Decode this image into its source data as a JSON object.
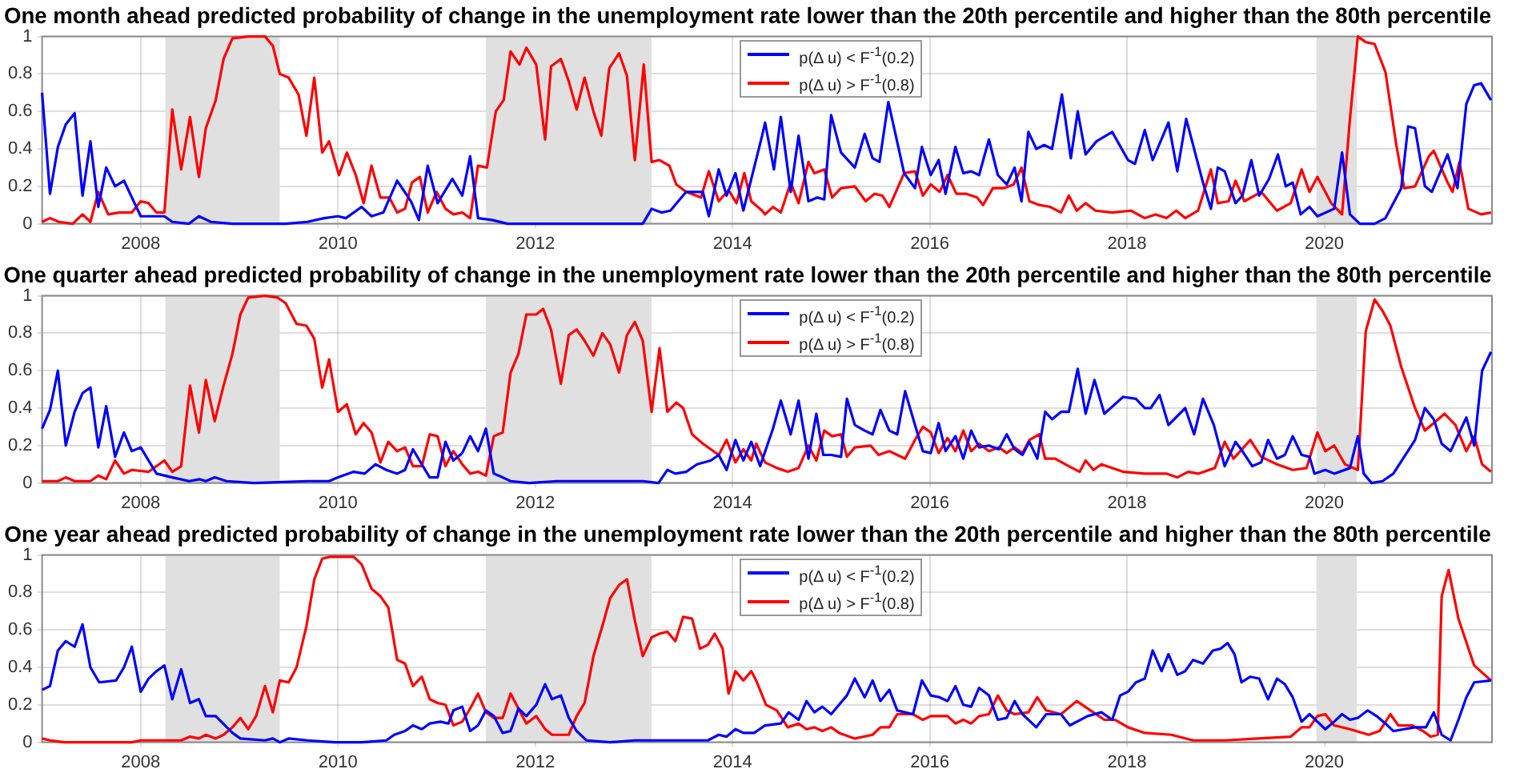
{
  "chart_data": [
    {
      "type": "line",
      "title": "One month ahead predicted probability of change in the unemployment rate lower than the 20th percentile and higher than the 80th percentile",
      "xlim": [
        2007,
        2021.7
      ],
      "xticks": [
        2008,
        2010,
        2012,
        2014,
        2016,
        2018,
        2020
      ],
      "ylim": [
        0,
        1
      ],
      "yticks": [
        0,
        0.2,
        0.4,
        0.6,
        0.8,
        1
      ],
      "grid": true,
      "legend": "top",
      "bands": [
        {
          "axis": "x",
          "from": 2008.25,
          "to": 2009.41,
          "color": "#e0e0e0"
        },
        {
          "axis": "x",
          "from": 2011.5,
          "to": 2013.18,
          "color": "#e0e0e0"
        },
        {
          "axis": "x",
          "from": 2019.92,
          "to": 2020.33,
          "color": "#e0e0e0"
        }
      ],
      "series": [
        {
          "name": "p(Δ u) < F$^{-1}$(0.2)",
          "color": "#0000ff",
          "x": [
            2007.0,
            2007.08,
            2007.16,
            2007.24,
            2007.33,
            2007.41,
            2007.49,
            2007.57,
            2007.65,
            2007.74,
            2007.83,
            2008.0,
            2008.24,
            2008.32,
            2008.49,
            2008.59,
            2008.71,
            2008.93,
            2009.47,
            2009.69,
            2009.86,
            2010.0,
            2010.08,
            2010.24,
            2010.34,
            2010.46,
            2010.6,
            2010.74,
            2010.82,
            2010.91,
            2011.01,
            2011.16,
            2011.26,
            2011.34,
            2011.42,
            2011.56,
            2011.72,
            2011.94,
            2013.09,
            2013.18,
            2013.28,
            2013.37,
            2013.53,
            2013.7,
            2013.76,
            2013.86,
            2013.94,
            2014.03,
            2014.11,
            2014.3,
            2014.33,
            2014.42,
            2014.49,
            2014.59,
            2014.67,
            2014.77,
            2014.86,
            2014.93,
            2015.0,
            2015.1,
            2015.24,
            2015.34,
            2015.42,
            2015.49,
            2015.58,
            2015.74,
            2015.85,
            2015.92,
            2016.01,
            2016.09,
            2016.16,
            2016.26,
            2016.34,
            2016.42,
            2016.5,
            2016.6,
            2016.69,
            2016.78,
            2016.86,
            2016.93,
            2017.0,
            2017.08,
            2017.16,
            2017.24,
            2017.34,
            2017.43,
            2017.5,
            2017.58,
            2017.69,
            2017.85,
            2018.01,
            2018.08,
            2018.18,
            2018.26,
            2018.42,
            2018.51,
            2018.6,
            2018.77,
            2018.85,
            2018.92,
            2018.99,
            2019.1,
            2019.17,
            2019.26,
            2019.34,
            2019.44,
            2019.53,
            2019.61,
            2019.68,
            2019.76,
            2019.85,
            2019.93,
            2020.1,
            2020.18,
            2020.26,
            2020.36,
            2020.51,
            2020.62,
            2020.78,
            2020.85,
            2020.92,
            2021.02,
            2021.09,
            2021.25,
            2021.35,
            2021.44,
            2021.52,
            2021.59,
            2021.69
          ],
          "values": [
            0.7,
            0.16,
            0.41,
            0.53,
            0.59,
            0.15,
            0.44,
            0.09,
            0.3,
            0.2,
            0.23,
            0.04,
            0.04,
            0.01,
            0.0,
            0.04,
            0.01,
            0,
            0,
            0.01,
            0.03,
            0.04,
            0.03,
            0.09,
            0.04,
            0.06,
            0.23,
            0.12,
            0.02,
            0.31,
            0.11,
            0.24,
            0.15,
            0.36,
            0.03,
            0.02,
            0,
            0,
            0,
            0.08,
            0.06,
            0.07,
            0.17,
            0.17,
            0.04,
            0.29,
            0.15,
            0.27,
            0.07,
            0.47,
            0.54,
            0.29,
            0.57,
            0.17,
            0.47,
            0.12,
            0.14,
            0.13,
            0.58,
            0.38,
            0.3,
            0.48,
            0.35,
            0.33,
            0.65,
            0.27,
            0.19,
            0.41,
            0.26,
            0.34,
            0.16,
            0.41,
            0.27,
            0.28,
            0.26,
            0.45,
            0.26,
            0.21,
            0.3,
            0.12,
            0.49,
            0.4,
            0.42,
            0.4,
            0.69,
            0.35,
            0.6,
            0.37,
            0.44,
            0.49,
            0.34,
            0.32,
            0.5,
            0.34,
            0.54,
            0.28,
            0.56,
            0.22,
            0.08,
            0.3,
            0.28,
            0.11,
            0.15,
            0.34,
            0.15,
            0.24,
            0.37,
            0.2,
            0.22,
            0.05,
            0.09,
            0.04,
            0.08,
            0.38,
            0.05,
            0,
            0,
            0.03,
            0.19,
            0.52,
            0.51,
            0.2,
            0.17,
            0.37,
            0.19,
            0.64,
            0.74,
            0.75,
            0.66
          ]
        },
        {
          "name": "p(Δ u) > F$^{-1}$(0.8)",
          "color": "#ff0000",
          "x": [
            2007.0,
            2007.08,
            2007.17,
            2007.31,
            2007.41,
            2007.49,
            2007.57,
            2007.67,
            2007.78,
            2007.91,
            2008.0,
            2008.08,
            2008.16,
            2008.24,
            2008.32,
            2008.41,
            2008.5,
            2008.59,
            2008.66,
            2008.76,
            2008.84,
            2008.93,
            2009.09,
            2009.26,
            2009.34,
            2009.41,
            2009.5,
            2009.6,
            2009.68,
            2009.76,
            2009.84,
            2009.91,
            2010.01,
            2010.09,
            2010.18,
            2010.26,
            2010.34,
            2010.43,
            2010.52,
            2010.6,
            2010.68,
            2010.75,
            2010.83,
            2010.91,
            2011.0,
            2011.09,
            2011.17,
            2011.26,
            2011.34,
            2011.42,
            2011.51,
            2011.6,
            2011.68,
            2011.75,
            2011.84,
            2011.91,
            2012.01,
            2012.1,
            2012.16,
            2012.26,
            2012.34,
            2012.42,
            2012.5,
            2012.59,
            2012.67,
            2012.75,
            2012.85,
            2012.93,
            2013.01,
            2013.1,
            2013.18,
            2013.26,
            2013.36,
            2013.43,
            2013.53,
            2013.68,
            2013.76,
            2013.86,
            2013.96,
            2014.04,
            2014.12,
            2014.19,
            2014.3,
            2014.33,
            2014.41,
            2014.49,
            2014.59,
            2014.67,
            2014.77,
            2014.83,
            2014.93,
            2015.01,
            2015.1,
            2015.24,
            2015.35,
            2015.44,
            2015.52,
            2015.59,
            2015.74,
            2015.85,
            2015.93,
            2016.01,
            2016.1,
            2016.18,
            2016.27,
            2016.37,
            2016.48,
            2016.54,
            2016.64,
            2016.75,
            2016.85,
            2016.93,
            2017.01,
            2017.11,
            2017.22,
            2017.33,
            2017.41,
            2017.49,
            2017.58,
            2017.68,
            2017.85,
            2018.04,
            2018.18,
            2018.29,
            2018.4,
            2018.5,
            2018.59,
            2018.72,
            2018.85,
            2018.92,
            2019.03,
            2019.1,
            2019.19,
            2019.36,
            2019.52,
            2019.66,
            2019.77,
            2019.85,
            2019.93,
            2020.07,
            2020.18,
            2020.26,
            2020.34,
            2020.42,
            2020.51,
            2020.62,
            2020.73,
            2020.81,
            2020.92,
            2021.06,
            2021.11,
            2021.25,
            2021.3,
            2021.37,
            2021.46,
            2021.59,
            2021.69
          ],
          "values": [
            0.01,
            0.03,
            0.01,
            0.0,
            0.05,
            0.01,
            0.17,
            0.05,
            0.06,
            0.06,
            0.12,
            0.11,
            0.06,
            0.06,
            0.61,
            0.29,
            0.57,
            0.25,
            0.51,
            0.66,
            0.88,
            0.99,
            1.0,
            1.0,
            0.95,
            0.8,
            0.78,
            0.69,
            0.47,
            0.78,
            0.38,
            0.44,
            0.26,
            0.38,
            0.26,
            0.11,
            0.31,
            0.14,
            0.14,
            0.06,
            0.08,
            0.22,
            0.25,
            0.06,
            0.17,
            0.08,
            0.05,
            0.06,
            0.03,
            0.31,
            0.3,
            0.6,
            0.66,
            0.92,
            0.85,
            0.94,
            0.85,
            0.45,
            0.84,
            0.88,
            0.76,
            0.61,
            0.78,
            0.6,
            0.47,
            0.83,
            0.91,
            0.79,
            0.34,
            0.85,
            0.33,
            0.34,
            0.31,
            0.21,
            0.17,
            0.14,
            0.28,
            0.12,
            0.18,
            0.11,
            0.27,
            0.12,
            0.07,
            0.05,
            0.09,
            0.06,
            0.22,
            0.11,
            0.33,
            0.27,
            0.29,
            0.14,
            0.19,
            0.2,
            0.12,
            0.16,
            0.15,
            0.09,
            0.27,
            0.28,
            0.15,
            0.21,
            0.17,
            0.26,
            0.16,
            0.16,
            0.14,
            0.1,
            0.19,
            0.19,
            0.21,
            0.3,
            0.12,
            0.1,
            0.09,
            0.06,
            0.15,
            0.07,
            0.11,
            0.07,
            0.06,
            0.07,
            0.03,
            0.05,
            0.03,
            0.07,
            0.03,
            0.07,
            0.29,
            0.11,
            0.12,
            0.23,
            0.12,
            0.17,
            0.07,
            0.11,
            0.29,
            0.17,
            0.25,
            0.11,
            0.05,
            0.56,
            1.0,
            0.97,
            0.96,
            0.81,
            0.42,
            0.19,
            0.2,
            0.36,
            0.39,
            0.22,
            0.17,
            0.33,
            0.08,
            0.05,
            0.06
          ]
        }
      ]
    },
    {
      "type": "line",
      "title": "One quarter ahead predicted probability of change in the unemployment rate lower than the 20th percentile and higher than the 80th percentile",
      "xlim": [
        2007,
        2021.7
      ],
      "xticks": [
        2008,
        2010,
        2012,
        2014,
        2016,
        2018,
        2020
      ],
      "ylim": [
        0,
        1
      ],
      "yticks": [
        0,
        0.2,
        0.4,
        0.6,
        0.8,
        1
      ],
      "grid": true,
      "legend": "top",
      "bands": [
        {
          "axis": "x",
          "from": 2008.25,
          "to": 2009.41,
          "color": "#e0e0e0"
        },
        {
          "axis": "x",
          "from": 2011.5,
          "to": 2013.18,
          "color": "#e0e0e0"
        },
        {
          "axis": "x",
          "from": 2019.92,
          "to": 2020.33,
          "color": "#e0e0e0"
        }
      ],
      "series": [
        {
          "name": "p(Δ u) < F$^{-1}$(0.2)",
          "color": "#0000ff",
          "x": [
            2007.0,
            2007.08,
            2007.16,
            2007.24,
            2007.33,
            2007.41,
            2007.49,
            2007.57,
            2007.65,
            2007.74,
            2007.83,
            2007.91,
            2008.0,
            2008.16,
            2008.32,
            2008.49,
            2008.6,
            2008.66,
            2008.75,
            2008.87,
            2009.15,
            2009.69,
            2009.91,
            2010.0,
            2010.16,
            2010.27,
            2010.38,
            2010.49,
            2010.6,
            2010.68,
            2010.76,
            2010.85,
            2010.93,
            2011.01,
            2011.09,
            2011.17,
            2011.26,
            2011.34,
            2011.42,
            2011.5,
            2011.58,
            2011.67,
            2011.75,
            2011.94,
            2012.22,
            2013.09,
            2013.25,
            2013.34,
            2013.42,
            2013.53,
            2013.64,
            2013.78,
            2013.86,
            2013.94,
            2014.03,
            2014.11,
            2014.19,
            2014.28,
            2014.41,
            2014.49,
            2014.59,
            2014.67,
            2014.77,
            2014.85,
            2014.92,
            2015.0,
            2015.1,
            2015.16,
            2015.24,
            2015.34,
            2015.42,
            2015.5,
            2015.59,
            2015.67,
            2015.75,
            2015.85,
            2015.93,
            2016.01,
            2016.09,
            2016.16,
            2016.26,
            2016.34,
            2016.42,
            2016.5,
            2016.6,
            2016.7,
            2016.78,
            2016.86,
            2016.94,
            2017.01,
            2017.09,
            2017.17,
            2017.24,
            2017.33,
            2017.41,
            2017.5,
            2017.58,
            2017.67,
            2017.77,
            2017.96,
            2018.09,
            2018.18,
            2018.24,
            2018.33,
            2018.42,
            2018.59,
            2018.68,
            2018.77,
            2018.88,
            2018.99,
            2019.1,
            2019.17,
            2019.27,
            2019.36,
            2019.43,
            2019.52,
            2019.6,
            2019.68,
            2019.77,
            2019.85,
            2019.9,
            2020.01,
            2020.1,
            2020.26,
            2020.34,
            2020.4,
            2020.48,
            2020.59,
            2020.7,
            2020.92,
            2021.02,
            2021.11,
            2021.19,
            2021.28,
            2021.44,
            2021.52,
            2021.6,
            2021.69
          ],
          "values": [
            0.29,
            0.39,
            0.6,
            0.2,
            0.38,
            0.48,
            0.51,
            0.19,
            0.41,
            0.14,
            0.27,
            0.17,
            0.19,
            0.05,
            0.03,
            0.01,
            0.02,
            0.01,
            0.03,
            0.01,
            0,
            0.01,
            0.01,
            0.03,
            0.06,
            0.05,
            0.1,
            0.07,
            0.05,
            0.07,
            0.18,
            0.1,
            0.03,
            0.03,
            0.22,
            0.12,
            0.16,
            0.25,
            0.17,
            0.29,
            0.05,
            0.03,
            0.01,
            0,
            0.01,
            0.01,
            0,
            0.07,
            0.05,
            0.06,
            0.1,
            0.12,
            0.15,
            0.07,
            0.23,
            0.12,
            0.22,
            0.09,
            0.29,
            0.44,
            0.26,
            0.44,
            0.13,
            0.37,
            0.15,
            0.15,
            0.14,
            0.45,
            0.31,
            0.28,
            0.26,
            0.39,
            0.28,
            0.26,
            0.49,
            0.31,
            0.17,
            0.16,
            0.32,
            0.17,
            0.25,
            0.13,
            0.28,
            0.19,
            0.2,
            0.18,
            0.26,
            0.18,
            0.15,
            0.22,
            0.13,
            0.38,
            0.34,
            0.38,
            0.38,
            0.61,
            0.37,
            0.55,
            0.37,
            0.46,
            0.45,
            0.4,
            0.4,
            0.47,
            0.31,
            0.4,
            0.26,
            0.45,
            0.31,
            0.09,
            0.22,
            0.17,
            0.09,
            0.11,
            0.23,
            0.13,
            0.15,
            0.25,
            0.15,
            0.14,
            0.05,
            0.07,
            0.05,
            0.08,
            0.25,
            0.05,
            0,
            0.01,
            0.05,
            0.23,
            0.4,
            0.34,
            0.21,
            0.17,
            0.35,
            0.2,
            0.6,
            0.7
          ]
        },
        {
          "name": "p(Δ u) > F$^{-1}$(0.8)",
          "color": "#ff0000",
          "x": [
            2007.0,
            2007.16,
            2007.24,
            2007.33,
            2007.49,
            2007.57,
            2007.65,
            2007.74,
            2007.83,
            2007.91,
            2008.08,
            2008.24,
            2008.32,
            2008.41,
            2008.5,
            2008.59,
            2008.66,
            2008.75,
            2008.84,
            2008.93,
            2009.01,
            2009.09,
            2009.26,
            2009.39,
            2009.47,
            2009.58,
            2009.68,
            2009.76,
            2009.84,
            2009.91,
            2010.0,
            2010.09,
            2010.18,
            2010.26,
            2010.34,
            2010.43,
            2010.51,
            2010.6,
            2010.68,
            2010.76,
            2010.85,
            2010.93,
            2011.01,
            2011.09,
            2011.17,
            2011.26,
            2011.34,
            2011.42,
            2011.5,
            2011.58,
            2011.67,
            2011.75,
            2011.83,
            2011.91,
            2012.01,
            2012.08,
            2012.16,
            2012.26,
            2012.34,
            2012.42,
            2012.5,
            2012.59,
            2012.68,
            2012.76,
            2012.85,
            2012.93,
            2013.01,
            2013.09,
            2013.18,
            2013.26,
            2013.34,
            2013.43,
            2013.5,
            2013.59,
            2013.7,
            2013.86,
            2013.94,
            2014.03,
            2014.11,
            2014.19,
            2014.24,
            2014.33,
            2014.45,
            2014.56,
            2014.67,
            2014.77,
            2014.85,
            2014.93,
            2015.01,
            2015.1,
            2015.16,
            2015.24,
            2015.4,
            2015.48,
            2015.59,
            2015.75,
            2015.85,
            2015.93,
            2016.01,
            2016.09,
            2016.18,
            2016.26,
            2016.34,
            2016.42,
            2016.5,
            2016.6,
            2016.7,
            2016.78,
            2016.86,
            2016.94,
            2017.01,
            2017.11,
            2017.17,
            2017.27,
            2017.41,
            2017.52,
            2017.58,
            2017.66,
            2017.74,
            2017.96,
            2018.18,
            2018.4,
            2018.51,
            2018.62,
            2018.72,
            2018.89,
            2018.99,
            2019.08,
            2019.25,
            2019.36,
            2019.52,
            2019.68,
            2019.82,
            2019.93,
            2020.01,
            2020.1,
            2020.21,
            2020.34,
            2020.42,
            2020.51,
            2020.59,
            2020.67,
            2020.78,
            2020.92,
            2021.02,
            2021.11,
            2021.22,
            2021.33,
            2021.44,
            2021.52,
            2021.6,
            2021.69
          ],
          "values": [
            0.01,
            0.01,
            0.03,
            0.01,
            0.01,
            0.04,
            0.02,
            0.12,
            0.05,
            0.07,
            0.06,
            0.12,
            0.06,
            0.09,
            0.52,
            0.27,
            0.55,
            0.33,
            0.52,
            0.69,
            0.9,
            0.99,
            1.0,
            0.99,
            0.96,
            0.85,
            0.84,
            0.77,
            0.51,
            0.66,
            0.38,
            0.42,
            0.26,
            0.32,
            0.27,
            0.11,
            0.22,
            0.17,
            0.19,
            0.09,
            0.09,
            0.26,
            0.25,
            0.09,
            0.17,
            0.1,
            0.05,
            0.06,
            0.04,
            0.25,
            0.27,
            0.59,
            0.69,
            0.9,
            0.9,
            0.93,
            0.82,
            0.53,
            0.79,
            0.82,
            0.76,
            0.68,
            0.8,
            0.74,
            0.59,
            0.79,
            0.86,
            0.76,
            0.38,
            0.72,
            0.38,
            0.43,
            0.4,
            0.26,
            0.21,
            0.15,
            0.23,
            0.11,
            0.18,
            0.12,
            0.21,
            0.11,
            0.08,
            0.06,
            0.08,
            0.2,
            0.12,
            0.28,
            0.25,
            0.26,
            0.14,
            0.19,
            0.2,
            0.15,
            0.17,
            0.13,
            0.23,
            0.3,
            0.27,
            0.16,
            0.24,
            0.17,
            0.28,
            0.17,
            0.21,
            0.17,
            0.19,
            0.16,
            0.19,
            0.16,
            0.23,
            0.26,
            0.13,
            0.13,
            0.09,
            0.06,
            0.12,
            0.07,
            0.1,
            0.06,
            0.05,
            0.05,
            0.03,
            0.06,
            0.05,
            0.08,
            0.22,
            0.13,
            0.23,
            0.14,
            0.1,
            0.07,
            0.08,
            0.27,
            0.17,
            0.2,
            0.1,
            0.07,
            0.81,
            0.98,
            0.92,
            0.84,
            0.62,
            0.4,
            0.28,
            0.32,
            0.37,
            0.31,
            0.17,
            0.25,
            0.1,
            0.06
          ]
        }
      ]
    },
    {
      "type": "line",
      "title": "One year ahead predicted probability of change in the unemployment rate lower than the 20th percentile and higher than the 80th percentile",
      "xlim": [
        2007,
        2021.7
      ],
      "xticks": [
        2008,
        2010,
        2012,
        2014,
        2016,
        2018,
        2020
      ],
      "ylim": [
        0,
        1
      ],
      "yticks": [
        0,
        0.2,
        0.4,
        0.6,
        0.8,
        1
      ],
      "grid": true,
      "legend": "top",
      "bands": [
        {
          "axis": "x",
          "from": 2008.25,
          "to": 2009.41,
          "color": "#e0e0e0"
        },
        {
          "axis": "x",
          "from": 2011.5,
          "to": 2013.18,
          "color": "#e0e0e0"
        },
        {
          "axis": "x",
          "from": 2019.92,
          "to": 2020.33,
          "color": "#e0e0e0"
        }
      ],
      "series": [
        {
          "name": "p(Δ u) < F$^{-1}$(0.2)",
          "color": "#0000ff",
          "x": [
            2007.0,
            2007.08,
            2007.16,
            2007.24,
            2007.33,
            2007.41,
            2007.49,
            2007.58,
            2007.75,
            2007.83,
            2007.91,
            2008.0,
            2008.08,
            2008.16,
            2008.24,
            2008.32,
            2008.41,
            2008.5,
            2008.59,
            2008.66,
            2008.76,
            2008.93,
            2009.01,
            2009.26,
            2009.34,
            2009.41,
            2009.5,
            2009.69,
            2009.97,
            2010.24,
            2010.49,
            2010.57,
            2010.68,
            2010.76,
            2010.85,
            2010.93,
            2011.04,
            2011.12,
            2011.17,
            2011.26,
            2011.34,
            2011.42,
            2011.5,
            2011.58,
            2011.67,
            2011.75,
            2011.83,
            2011.91,
            2012.01,
            2012.1,
            2012.17,
            2012.26,
            2012.34,
            2012.42,
            2012.52,
            2012.76,
            2013.01,
            2013.15,
            2013.53,
            2013.75,
            2013.86,
            2013.94,
            2014.03,
            2014.11,
            2014.22,
            2014.33,
            2014.49,
            2014.57,
            2014.67,
            2014.75,
            2014.83,
            2014.91,
            2015.0,
            2015.16,
            2015.24,
            2015.34,
            2015.42,
            2015.5,
            2015.59,
            2015.67,
            2015.83,
            2015.92,
            2016.01,
            2016.1,
            2016.18,
            2016.26,
            2016.34,
            2016.42,
            2016.5,
            2016.6,
            2016.69,
            2016.78,
            2016.86,
            2016.94,
            2017.08,
            2017.18,
            2017.33,
            2017.42,
            2017.6,
            2017.74,
            2017.85,
            2017.93,
            2018.01,
            2018.09,
            2018.18,
            2018.26,
            2018.35,
            2018.42,
            2018.51,
            2018.59,
            2018.67,
            2018.77,
            2018.87,
            2018.95,
            2019.02,
            2019.09,
            2019.16,
            2019.25,
            2019.34,
            2019.43,
            2019.52,
            2019.6,
            2019.68,
            2019.77,
            2019.85,
            2019.93,
            2020.01,
            2020.1,
            2020.18,
            2020.26,
            2020.34,
            2020.44,
            2020.53,
            2020.62,
            2020.7,
            2020.81,
            2020.92,
            2021.03,
            2021.11,
            2021.19,
            2021.28,
            2021.36,
            2021.44,
            2021.52,
            2021.69
          ],
          "values": [
            0.28,
            0.3,
            0.49,
            0.54,
            0.51,
            0.63,
            0.4,
            0.32,
            0.33,
            0.4,
            0.51,
            0.27,
            0.34,
            0.38,
            0.41,
            0.23,
            0.39,
            0.21,
            0.23,
            0.14,
            0.14,
            0.05,
            0.02,
            0.01,
            0.02,
            0,
            0.02,
            0.01,
            0,
            0,
            0.01,
            0.04,
            0.06,
            0.09,
            0.07,
            0.1,
            0.11,
            0.1,
            0.17,
            0.19,
            0.06,
            0.09,
            0.17,
            0.14,
            0.05,
            0.06,
            0.18,
            0.14,
            0.2,
            0.31,
            0.23,
            0.25,
            0.13,
            0.06,
            0.01,
            0,
            0.01,
            0.01,
            0.01,
            0.01,
            0.04,
            0.03,
            0.07,
            0.05,
            0.05,
            0.09,
            0.1,
            0.16,
            0.12,
            0.22,
            0.16,
            0.19,
            0.15,
            0.25,
            0.34,
            0.24,
            0.33,
            0.22,
            0.28,
            0.17,
            0.15,
            0.33,
            0.25,
            0.24,
            0.22,
            0.3,
            0.2,
            0.19,
            0.29,
            0.25,
            0.12,
            0.13,
            0.22,
            0.15,
            0.08,
            0.15,
            0.15,
            0.09,
            0.14,
            0.16,
            0.12,
            0.25,
            0.27,
            0.32,
            0.34,
            0.49,
            0.38,
            0.47,
            0.36,
            0.38,
            0.44,
            0.42,
            0.49,
            0.5,
            0.53,
            0.47,
            0.32,
            0.35,
            0.34,
            0.23,
            0.34,
            0.31,
            0.24,
            0.11,
            0.15,
            0.11,
            0.07,
            0.11,
            0.15,
            0.12,
            0.13,
            0.17,
            0.14,
            0.1,
            0.06,
            0.07,
            0.08,
            0.08,
            0.16,
            0.04,
            0.01,
            0.12,
            0.24,
            0.32,
            0.33
          ]
        },
        {
          "name": "p(Δ u) > F$^{-1}$(0.8)",
          "color": "#ff0000",
          "x": [
            2007.0,
            2007.08,
            2007.23,
            2007.51,
            2007.78,
            2007.91,
            2008.0,
            2008.16,
            2008.32,
            2008.41,
            2008.5,
            2008.59,
            2008.66,
            2008.76,
            2008.84,
            2008.93,
            2009.01,
            2009.09,
            2009.17,
            2009.26,
            2009.34,
            2009.41,
            2009.5,
            2009.58,
            2009.68,
            2009.76,
            2009.84,
            2009.91,
            2010.16,
            2010.24,
            2010.34,
            2010.43,
            2010.51,
            2010.6,
            2010.68,
            2010.76,
            2010.85,
            2010.93,
            2011.01,
            2011.09,
            2011.17,
            2011.26,
            2011.34,
            2011.42,
            2011.5,
            2011.58,
            2011.67,
            2011.75,
            2011.83,
            2011.91,
            2012.01,
            2012.1,
            2012.17,
            2012.26,
            2012.34,
            2012.42,
            2012.5,
            2012.59,
            2012.68,
            2012.76,
            2012.85,
            2012.93,
            2013.01,
            2013.09,
            2013.18,
            2013.26,
            2013.34,
            2013.42,
            2013.5,
            2013.59,
            2013.67,
            2013.75,
            2013.82,
            2013.9,
            2013.96,
            2014.03,
            2014.11,
            2014.19,
            2014.24,
            2014.34,
            2014.45,
            2014.56,
            2014.67,
            2014.75,
            2014.83,
            2014.91,
            2015.0,
            2015.08,
            2015.24,
            2015.42,
            2015.5,
            2015.59,
            2015.67,
            2015.83,
            2015.93,
            2016.01,
            2016.18,
            2016.26,
            2016.34,
            2016.42,
            2016.5,
            2016.6,
            2016.69,
            2016.78,
            2016.86,
            2017.0,
            2017.09,
            2017.18,
            2017.33,
            2017.49,
            2017.63,
            2017.77,
            2017.88,
            2018.01,
            2018.18,
            2018.45,
            2018.67,
            2018.99,
            2019.33,
            2019.66,
            2019.77,
            2019.85,
            2019.93,
            2020.01,
            2020.1,
            2020.26,
            2020.45,
            2020.56,
            2020.67,
            2020.75,
            2020.89,
            2021.0,
            2021.08,
            2021.15,
            2021.19,
            2021.26,
            2021.36,
            2021.52,
            2021.69
          ],
          "values": [
            0.02,
            0.01,
            0,
            0,
            0,
            0,
            0.01,
            0.01,
            0.01,
            0.01,
            0.03,
            0.02,
            0.04,
            0.02,
            0.04,
            0.08,
            0.13,
            0.07,
            0.14,
            0.3,
            0.16,
            0.33,
            0.32,
            0.4,
            0.62,
            0.87,
            0.98,
            0.99,
            0.99,
            0.95,
            0.82,
            0.78,
            0.72,
            0.44,
            0.42,
            0.3,
            0.35,
            0.23,
            0.21,
            0.2,
            0.09,
            0.11,
            0.18,
            0.26,
            0.16,
            0.13,
            0.13,
            0.26,
            0.18,
            0.1,
            0.14,
            0.07,
            0.04,
            0.04,
            0.04,
            0.14,
            0.21,
            0.46,
            0.62,
            0.77,
            0.84,
            0.87,
            0.65,
            0.46,
            0.56,
            0.58,
            0.59,
            0.54,
            0.67,
            0.66,
            0.5,
            0.52,
            0.58,
            0.5,
            0.26,
            0.38,
            0.33,
            0.38,
            0.33,
            0.2,
            0.17,
            0.08,
            0.1,
            0.07,
            0.08,
            0.06,
            0.08,
            0.05,
            0.02,
            0.04,
            0.08,
            0.08,
            0.15,
            0.15,
            0.12,
            0.14,
            0.14,
            0.1,
            0.12,
            0.1,
            0.14,
            0.15,
            0.25,
            0.17,
            0.15,
            0.16,
            0.24,
            0.17,
            0.15,
            0.22,
            0.17,
            0.12,
            0.12,
            0.08,
            0.05,
            0.04,
            0.01,
            0.01,
            0.02,
            0.03,
            0.08,
            0.08,
            0.14,
            0.15,
            0.09,
            0.07,
            0.04,
            0.06,
            0.15,
            0.09,
            0.09,
            0.06,
            0.03,
            0.04,
            0.78,
            0.92,
            0.66,
            0.41,
            0.33
          ]
        }
      ]
    }
  ]
}
